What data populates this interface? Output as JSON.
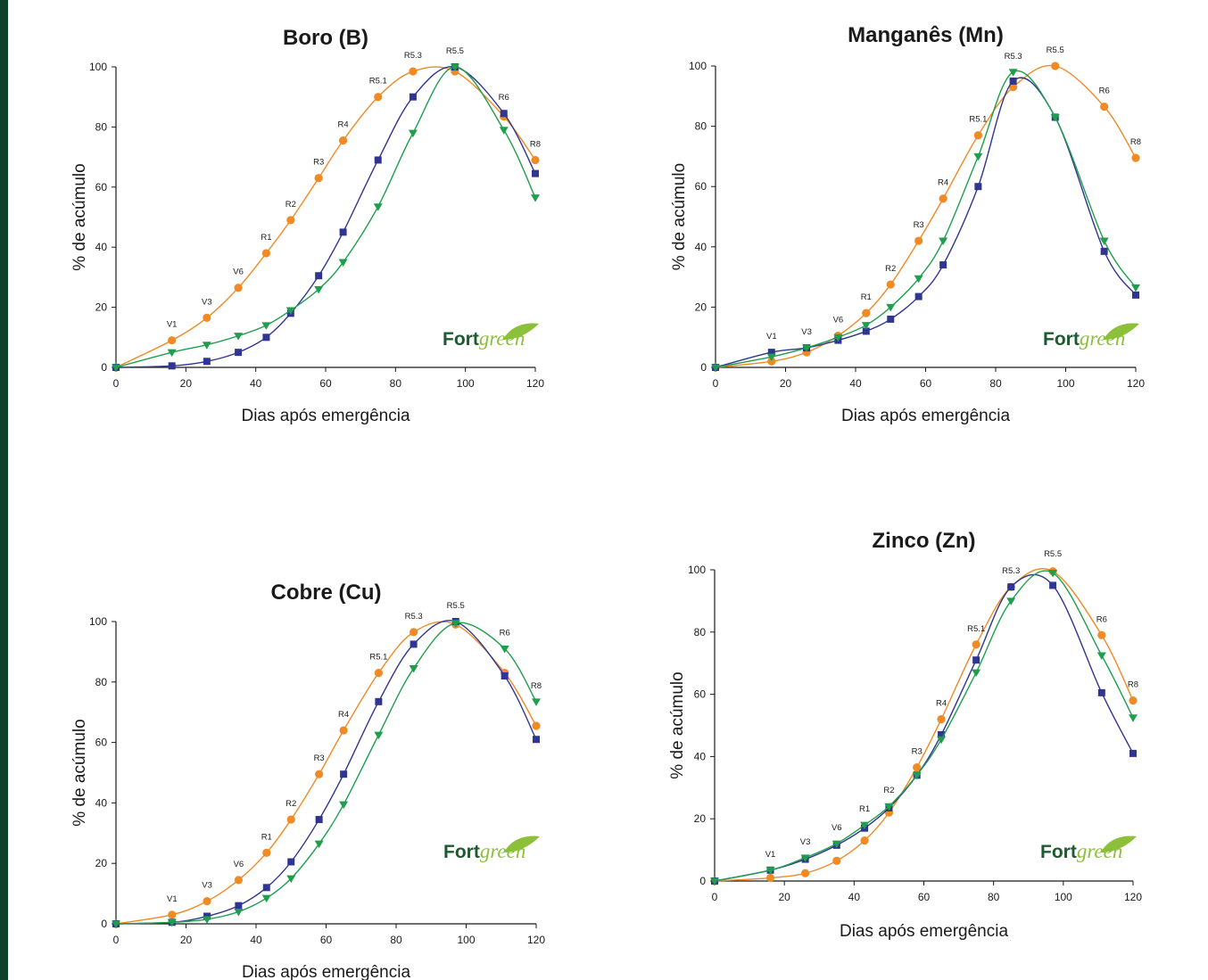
{
  "colors": {
    "left_bar": "#0e4228",
    "orange": "#f08a24",
    "navy": "#2f3590",
    "green": "#1f9e4e",
    "logo_dark": "#1d5a2f",
    "logo_light": "#8cbf3a"
  },
  "logo": {
    "part1": "Fort",
    "part2": "green"
  },
  "chart_data": [
    {
      "type": "line",
      "title": "Boro (B)",
      "xlabel": "Dias após emergência",
      "ylabel": "% de acúmulo",
      "xlim": [
        0,
        120
      ],
      "ylim": [
        0,
        100
      ],
      "xticks": [
        0,
        20,
        40,
        60,
        80,
        100,
        120
      ],
      "yticks": [
        0,
        20,
        40,
        60,
        80,
        100
      ],
      "x": [
        0,
        16,
        26,
        35,
        43,
        50,
        58,
        65,
        75,
        85,
        97,
        111,
        120
      ],
      "series": [
        {
          "color": "orange",
          "marker": "circle",
          "values": [
            0,
            9,
            16.5,
            26.5,
            38,
            49,
            63,
            75.5,
            90,
            98.5,
            98.5,
            83.5,
            69
          ]
        },
        {
          "color": "navy",
          "marker": "square",
          "values": [
            0,
            0.5,
            2,
            5,
            10,
            18,
            30.5,
            45,
            69,
            90,
            100,
            84.5,
            64.5
          ]
        },
        {
          "color": "green",
          "marker": "triangle",
          "values": [
            0,
            5,
            7.5,
            10.5,
            14,
            19,
            26,
            35,
            53.5,
            78,
            100,
            79,
            56.5
          ]
        }
      ],
      "stage_labels": [
        {
          "text": "V1",
          "x": 16,
          "y": 9
        },
        {
          "text": "V3",
          "x": 26,
          "y": 16.5
        },
        {
          "text": "V6",
          "x": 35,
          "y": 26.5
        },
        {
          "text": "R1",
          "x": 43,
          "y": 38
        },
        {
          "text": "R2",
          "x": 50,
          "y": 49
        },
        {
          "text": "R3",
          "x": 58,
          "y": 63
        },
        {
          "text": "R4",
          "x": 65,
          "y": 75.5
        },
        {
          "text": "R5.1",
          "x": 75,
          "y": 90
        },
        {
          "text": "R5.3",
          "x": 85,
          "y": 98.5
        },
        {
          "text": "R5.5",
          "x": 97,
          "y": 100
        },
        {
          "text": "R6",
          "x": 111,
          "y": 84.5
        },
        {
          "text": "R8",
          "x": 120,
          "y": 69
        }
      ]
    },
    {
      "type": "line",
      "title": "Manganês (Mn)",
      "xlabel": "Dias após emergência",
      "ylabel": "% de acúmulo",
      "xlim": [
        0,
        120
      ],
      "ylim": [
        0,
        100
      ],
      "xticks": [
        0,
        20,
        40,
        60,
        80,
        100,
        120
      ],
      "yticks": [
        0,
        20,
        40,
        60,
        80,
        100
      ],
      "x": [
        0,
        16,
        26,
        35,
        43,
        50,
        58,
        65,
        75,
        85,
        97,
        111,
        120
      ],
      "series": [
        {
          "color": "orange",
          "marker": "circle",
          "values": [
            0,
            2,
            5,
            10.5,
            18,
            27.5,
            42,
            56,
            77,
            93,
            100,
            86.5,
            69.5
          ]
        },
        {
          "color": "navy",
          "marker": "square",
          "values": [
            0,
            5,
            6.5,
            9,
            12,
            16,
            23.5,
            34,
            60,
            95,
            83,
            38.5,
            24
          ]
        },
        {
          "color": "green",
          "marker": "triangle",
          "values": [
            0,
            3.5,
            6.5,
            10,
            14,
            20,
            29.5,
            42,
            70,
            98,
            83,
            42,
            26.5
          ]
        }
      ],
      "stage_labels": [
        {
          "text": "V1",
          "x": 16,
          "y": 5
        },
        {
          "text": "V3",
          "x": 26,
          "y": 6.5
        },
        {
          "text": "V6",
          "x": 35,
          "y": 10.5
        },
        {
          "text": "R1",
          "x": 43,
          "y": 18
        },
        {
          "text": "R2",
          "x": 50,
          "y": 27.5
        },
        {
          "text": "R3",
          "x": 58,
          "y": 42
        },
        {
          "text": "R4",
          "x": 65,
          "y": 56
        },
        {
          "text": "R5.1",
          "x": 75,
          "y": 77
        },
        {
          "text": "R5.3",
          "x": 85,
          "y": 98
        },
        {
          "text": "R5.5",
          "x": 97,
          "y": 100
        },
        {
          "text": "R6",
          "x": 111,
          "y": 86.5
        },
        {
          "text": "R8",
          "x": 120,
          "y": 69.5
        }
      ]
    },
    {
      "type": "line",
      "title": "Cobre (Cu)",
      "xlabel": "Dias após emergência",
      "ylabel": "% de acúmulo",
      "xlim": [
        0,
        120
      ],
      "ylim": [
        0,
        100
      ],
      "xticks": [
        0,
        20,
        40,
        60,
        80,
        100,
        120
      ],
      "yticks": [
        0,
        20,
        40,
        60,
        80,
        100
      ],
      "x": [
        0,
        16,
        26,
        35,
        43,
        50,
        58,
        65,
        75,
        85,
        97,
        111,
        120
      ],
      "series": [
        {
          "color": "orange",
          "marker": "circle",
          "values": [
            0,
            3,
            7.5,
            14.5,
            23.5,
            34.5,
            49.5,
            64,
            83,
            96.5,
            99,
            83,
            65.5
          ]
        },
        {
          "color": "navy",
          "marker": "square",
          "values": [
            0,
            0.5,
            2.5,
            6,
            12,
            20.5,
            34.5,
            49.5,
            73.5,
            92.5,
            100,
            82,
            61
          ]
        },
        {
          "color": "green",
          "marker": "triangle",
          "values": [
            0,
            0.5,
            1.5,
            4,
            8.5,
            15,
            26.5,
            39.5,
            62.5,
            84.5,
            99.5,
            91,
            73.5
          ]
        }
      ],
      "stage_labels": [
        {
          "text": "V1",
          "x": 16,
          "y": 3
        },
        {
          "text": "V3",
          "x": 26,
          "y": 7.5
        },
        {
          "text": "V6",
          "x": 35,
          "y": 14.5
        },
        {
          "text": "R1",
          "x": 43,
          "y": 23.5
        },
        {
          "text": "R2",
          "x": 50,
          "y": 34.5
        },
        {
          "text": "R3",
          "x": 58,
          "y": 49.5
        },
        {
          "text": "R4",
          "x": 65,
          "y": 64
        },
        {
          "text": "R5.1",
          "x": 75,
          "y": 83
        },
        {
          "text": "R5.3",
          "x": 85,
          "y": 96.5
        },
        {
          "text": "R5.5",
          "x": 97,
          "y": 100
        },
        {
          "text": "R6",
          "x": 111,
          "y": 91
        },
        {
          "text": "R8",
          "x": 120,
          "y": 73.5
        }
      ]
    },
    {
      "type": "line",
      "title": "Zinco (Zn)",
      "xlabel": "Dias após emergência",
      "ylabel": "% de acúmulo",
      "xlim": [
        0,
        120
      ],
      "ylim": [
        0,
        100
      ],
      "xticks": [
        0,
        20,
        40,
        60,
        80,
        100,
        120
      ],
      "yticks": [
        0,
        20,
        40,
        60,
        80,
        100
      ],
      "x": [
        0,
        16,
        26,
        35,
        43,
        50,
        58,
        65,
        75,
        85,
        97,
        111,
        120
      ],
      "series": [
        {
          "color": "orange",
          "marker": "circle",
          "values": [
            0,
            1,
            2.5,
            6.5,
            13,
            22,
            36.5,
            52,
            76,
            94.5,
            99.5,
            79,
            58
          ]
        },
        {
          "color": "navy",
          "marker": "square",
          "values": [
            0,
            3.5,
            7,
            11.5,
            17,
            23.5,
            34,
            47,
            71,
            94.5,
            95,
            60.5,
            41
          ]
        },
        {
          "color": "green",
          "marker": "triangle",
          "values": [
            0,
            3.5,
            7.5,
            12,
            18,
            24,
            34,
            45.5,
            67,
            90,
            99,
            72.5,
            52.5
          ]
        }
      ],
      "stage_labels": [
        {
          "text": "V1",
          "x": 16,
          "y": 3.5
        },
        {
          "text": "V3",
          "x": 26,
          "y": 7.5
        },
        {
          "text": "V6",
          "x": 35,
          "y": 12
        },
        {
          "text": "R1",
          "x": 43,
          "y": 18
        },
        {
          "text": "R2",
          "x": 50,
          "y": 24
        },
        {
          "text": "R3",
          "x": 58,
          "y": 36.5
        },
        {
          "text": "R4",
          "x": 65,
          "y": 52
        },
        {
          "text": "R5.1",
          "x": 75,
          "y": 76
        },
        {
          "text": "R5.3",
          "x": 85,
          "y": 94.5
        },
        {
          "text": "R5.5",
          "x": 97,
          "y": 100
        },
        {
          "text": "R6",
          "x": 111,
          "y": 79
        },
        {
          "text": "R8",
          "x": 120,
          "y": 58
        }
      ]
    }
  ]
}
